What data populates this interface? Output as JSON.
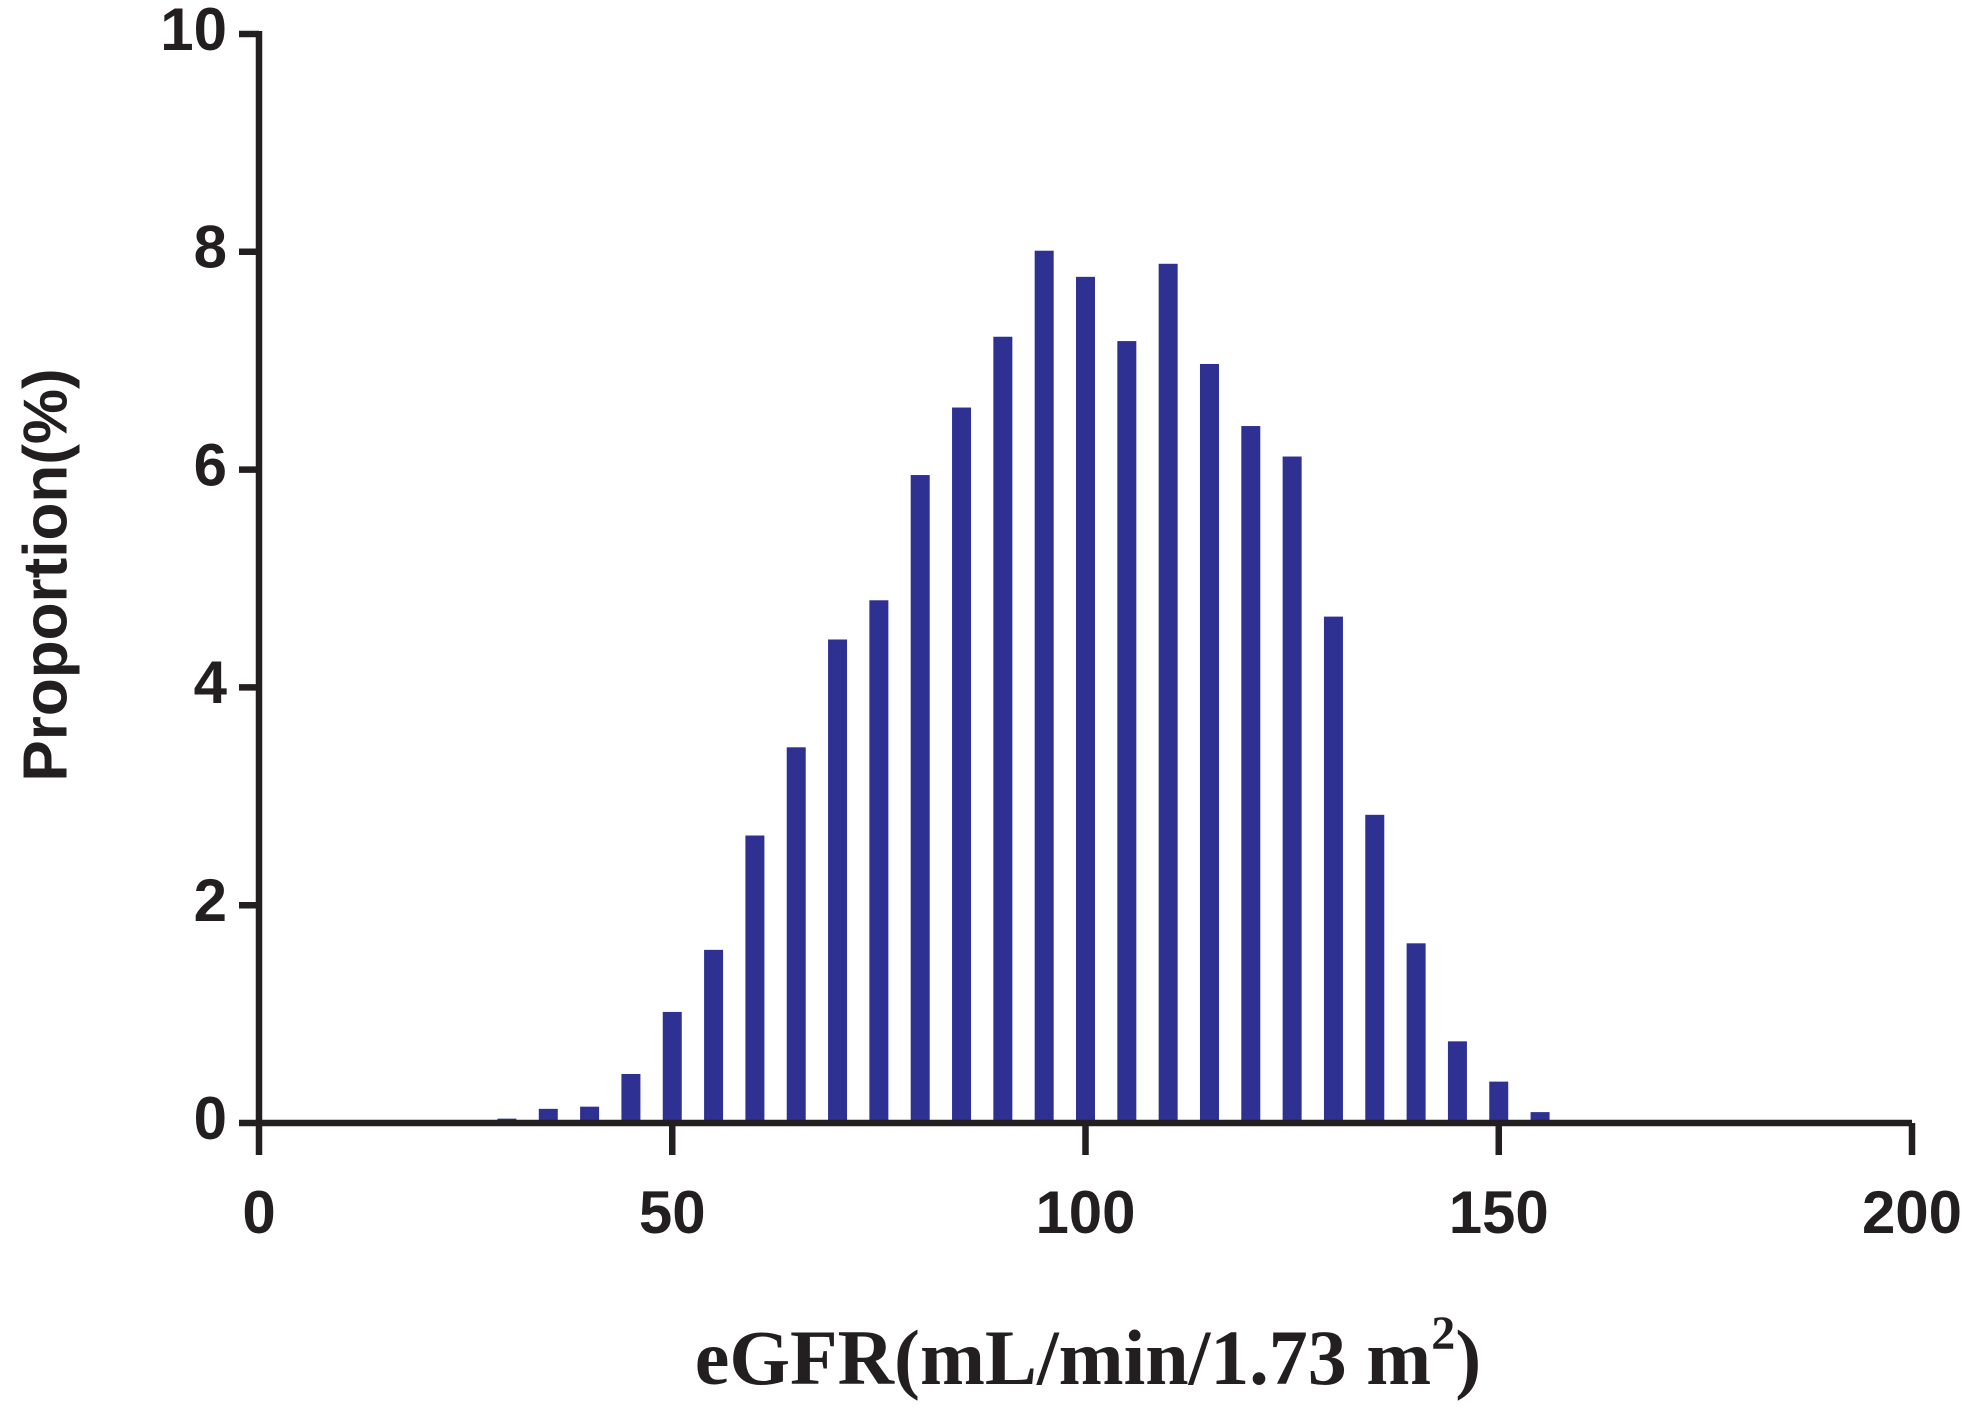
{
  "chart_data": {
    "type": "bar",
    "y_label": "Proportion(%)",
    "x_label": [
      "eGFR(mL/min/1.73 m",
      "2",
      ")"
    ],
    "x": [
      30,
      35,
      40,
      45,
      50,
      55,
      60,
      65,
      70,
      75,
      80,
      85,
      90,
      95,
      100,
      105,
      110,
      115,
      120,
      125,
      130,
      135,
      140,
      145,
      150,
      155,
      160,
      165
    ],
    "values": [
      0.04,
      0.13,
      0.15,
      0.45,
      1.02,
      1.59,
      2.64,
      3.45,
      4.44,
      4.8,
      5.95,
      6.57,
      7.22,
      8.01,
      7.77,
      7.18,
      7.89,
      6.97,
      6.4,
      6.12,
      4.65,
      2.83,
      1.65,
      0.75,
      0.38,
      0.1,
      0.02,
      0.02
    ],
    "color": "#2e3192",
    "xlim": [
      0,
      200
    ],
    "xticks": [
      0,
      50,
      100,
      150,
      200
    ],
    "ylim": [
      0,
      10
    ],
    "yticks": [
      0,
      2,
      4,
      6,
      8,
      10
    ],
    "grid": false
  }
}
